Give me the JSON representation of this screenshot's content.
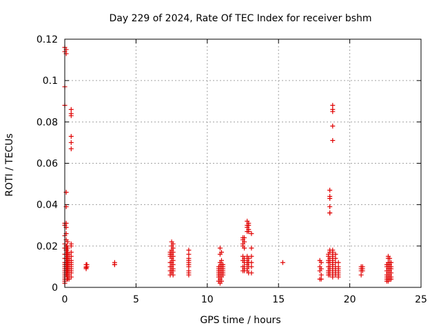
{
  "chart_data": {
    "type": "scatter",
    "title": "Day 229 of 2024, Rate Of TEC Index for receiver bshm",
    "xlabel": "GPS time / hours",
    "ylabel": "ROTI / TECUs",
    "xlim": [
      0,
      25
    ],
    "ylim": [
      0,
      0.12
    ],
    "xticks": [
      "0",
      "5",
      "10",
      "15",
      "20",
      "25"
    ],
    "yticks": [
      "0",
      "0.02",
      "0.04",
      "0.06",
      "0.08",
      "0.1",
      "0.12"
    ],
    "grid": true,
    "marker_color": "#e00000",
    "marker": "plus",
    "series": [
      {
        "x": [
          0.0,
          0.0,
          0.0,
          0.0,
          0.0,
          0.0,
          0.0,
          0.0,
          0.0,
          0.0,
          0.0,
          0.0,
          0.0,
          0.0,
          0.0,
          0.0,
          0.0,
          0.0,
          0.0,
          0.0,
          0.0,
          0.0,
          0.1,
          0.1,
          0.1,
          0.1,
          0.1,
          0.1,
          0.1,
          0.1,
          0.1,
          0.1,
          0.1,
          0.1,
          0.1,
          0.1,
          0.1,
          0.1,
          0.1,
          0.1,
          0.15,
          0.15,
          0.15,
          0.15,
          0.15,
          0.15,
          0.15,
          0.15,
          0.15,
          0.2,
          0.2,
          0.2,
          0.2,
          0.2,
          0.2,
          0.2,
          0.2,
          0.2,
          0.2,
          0.2,
          0.2,
          0.2,
          0.3,
          0.3,
          0.3,
          0.3,
          0.3,
          0.3,
          0.3,
          0.3,
          0.3,
          0.3,
          0.3,
          0.3,
          0.45,
          0.45,
          0.45,
          0.45,
          0.45,
          0.45,
          0.45,
          0.45,
          0.45,
          0.45,
          0.45,
          0.45,
          0.45,
          0.45,
          0.45,
          0.45,
          0.45,
          0.45,
          1.5,
          1.5,
          1.5,
          1.5,
          1.55,
          1.55,
          3.5,
          3.5,
          3.5,
          7.4,
          7.4,
          7.4,
          7.4,
          7.4,
          7.4,
          7.4,
          7.5,
          7.5,
          7.5,
          7.5,
          7.5,
          7.5,
          7.5,
          7.5,
          7.5,
          7.6,
          7.6,
          7.6,
          7.6,
          7.6,
          7.6,
          7.6,
          7.6,
          7.6,
          8.7,
          8.7,
          8.7,
          8.7,
          8.7,
          8.7,
          8.7,
          8.7,
          8.7,
          8.7,
          10.8,
          10.8,
          10.8,
          10.8,
          10.8,
          10.8,
          10.8,
          10.9,
          10.9,
          10.9,
          10.9,
          10.9,
          10.9,
          10.9,
          10.9,
          11.0,
          11.0,
          11.0,
          11.0,
          11.0,
          11.0,
          11.0,
          11.0,
          11.1,
          11.1,
          11.1,
          11.1,
          11.1,
          11.1,
          12.5,
          12.5,
          12.5,
          12.5,
          12.5,
          12.5,
          12.5,
          12.5,
          12.6,
          12.6,
          12.6,
          12.6,
          12.6,
          12.6,
          12.6,
          12.6,
          12.8,
          12.8,
          12.8,
          12.8,
          12.8,
          12.8,
          12.8,
          12.8,
          12.8,
          12.8,
          12.9,
          12.9,
          12.9,
          12.9,
          12.9,
          12.9,
          12.9,
          12.9,
          13.1,
          13.1,
          13.1,
          13.1,
          13.1,
          13.1,
          15.3,
          17.9,
          17.9,
          17.9,
          17.9,
          18.0,
          18.0,
          18.0,
          18.0,
          18.5,
          18.5,
          18.5,
          18.5,
          18.5,
          18.5,
          18.5,
          18.5,
          18.6,
          18.6,
          18.6,
          18.6,
          18.6,
          18.6,
          18.6,
          18.6,
          18.6,
          18.6,
          18.6,
          18.6,
          18.6,
          18.6,
          18.8,
          18.8,
          18.8,
          18.8,
          18.8,
          18.8,
          18.8,
          18.8,
          18.8,
          18.8,
          18.8,
          18.8,
          18.8,
          18.8,
          18.8,
          18.8,
          18.8,
          18.8,
          18.8,
          19.0,
          19.0,
          19.0,
          19.0,
          19.0,
          19.0,
          19.0,
          19.0,
          19.2,
          19.2,
          19.2,
          19.2,
          19.2,
          19.2,
          19.2,
          20.8,
          20.8,
          20.8,
          20.8,
          20.9,
          20.9,
          20.9,
          22.6,
          22.6,
          22.6,
          22.6,
          22.6,
          22.6,
          22.6,
          22.7,
          22.7,
          22.7,
          22.7,
          22.7,
          22.7,
          22.7,
          22.7,
          22.7,
          22.7,
          22.8,
          22.8,
          22.8,
          22.8,
          22.8,
          22.8,
          22.8,
          22.8,
          22.8,
          22.9,
          22.9,
          22.9,
          22.9,
          22.9,
          22.9
        ],
        "y": [
          0.116,
          0.114,
          0.097,
          0.088,
          0.031,
          0.03,
          0.025,
          0.021,
          0.019,
          0.016,
          0.014,
          0.012,
          0.011,
          0.01,
          0.009,
          0.008,
          0.007,
          0.006,
          0.005,
          0.004,
          0.003,
          0.002,
          0.115,
          0.113,
          0.046,
          0.039,
          0.031,
          0.029,
          0.026,
          0.023,
          0.02,
          0.018,
          0.016,
          0.014,
          0.012,
          0.011,
          0.01,
          0.009,
          0.008,
          0.006,
          0.02,
          0.018,
          0.016,
          0.014,
          0.012,
          0.01,
          0.008,
          0.006,
          0.004,
          0.022,
          0.019,
          0.017,
          0.015,
          0.013,
          0.012,
          0.011,
          0.01,
          0.009,
          0.008,
          0.007,
          0.005,
          0.004,
          0.016,
          0.014,
          0.013,
          0.012,
          0.011,
          0.01,
          0.009,
          0.008,
          0.007,
          0.006,
          0.005,
          0.004,
          0.086,
          0.084,
          0.083,
          0.073,
          0.07,
          0.067,
          0.021,
          0.02,
          0.017,
          0.015,
          0.013,
          0.012,
          0.011,
          0.01,
          0.009,
          0.008,
          0.007,
          0.005,
          0.011,
          0.01,
          0.0095,
          0.009,
          0.011,
          0.01,
          0.012,
          0.011,
          0.011,
          0.017,
          0.016,
          0.015,
          0.012,
          0.01,
          0.008,
          0.006,
          0.022,
          0.02,
          0.018,
          0.016,
          0.014,
          0.012,
          0.01,
          0.008,
          0.007,
          0.021,
          0.019,
          0.017,
          0.015,
          0.013,
          0.011,
          0.009,
          0.008,
          0.006,
          0.018,
          0.016,
          0.014,
          0.013,
          0.012,
          0.011,
          0.01,
          0.008,
          0.007,
          0.006,
          0.01,
          0.009,
          0.008,
          0.007,
          0.006,
          0.005,
          0.003,
          0.019,
          0.016,
          0.012,
          0.01,
          0.008,
          0.006,
          0.004,
          0.002,
          0.017,
          0.013,
          0.011,
          0.01,
          0.009,
          0.007,
          0.005,
          0.003,
          0.011,
          0.01,
          0.009,
          0.008,
          0.007,
          0.006,
          0.024,
          0.023,
          0.021,
          0.02,
          0.015,
          0.013,
          0.01,
          0.008,
          0.024,
          0.022,
          0.019,
          0.014,
          0.012,
          0.01,
          0.009,
          0.008,
          0.032,
          0.03,
          0.029,
          0.027,
          0.015,
          0.013,
          0.012,
          0.011,
          0.009,
          0.008,
          0.031,
          0.03,
          0.028,
          0.027,
          0.014,
          0.012,
          0.01,
          0.007,
          0.026,
          0.019,
          0.015,
          0.012,
          0.01,
          0.007,
          0.012,
          0.013,
          0.01,
          0.008,
          0.004,
          0.012,
          0.009,
          0.006,
          0.004,
          0.016,
          0.015,
          0.013,
          0.012,
          0.01,
          0.008,
          0.007,
          0.006,
          0.047,
          0.044,
          0.043,
          0.039,
          0.036,
          0.036,
          0.018,
          0.017,
          0.014,
          0.012,
          0.01,
          0.009,
          0.008,
          0.006,
          0.088,
          0.086,
          0.085,
          0.078,
          0.071,
          0.018,
          0.017,
          0.016,
          0.015,
          0.014,
          0.013,
          0.012,
          0.011,
          0.01,
          0.009,
          0.008,
          0.007,
          0.006,
          0.005,
          0.016,
          0.014,
          0.012,
          0.01,
          0.009,
          0.008,
          0.007,
          0.006,
          0.012,
          0.01,
          0.009,
          0.008,
          0.007,
          0.006,
          0.005,
          0.01,
          0.009,
          0.008,
          0.006,
          0.01,
          0.009,
          0.008,
          0.011,
          0.01,
          0.008,
          0.006,
          0.005,
          0.004,
          0.003,
          0.015,
          0.014,
          0.012,
          0.011,
          0.01,
          0.009,
          0.007,
          0.005,
          0.004,
          0.003,
          0.014,
          0.012,
          0.011,
          0.01,
          0.009,
          0.008,
          0.006,
          0.005,
          0.004,
          0.012,
          0.01,
          0.009,
          0.007,
          0.005,
          0.004
        ]
      }
    ]
  }
}
